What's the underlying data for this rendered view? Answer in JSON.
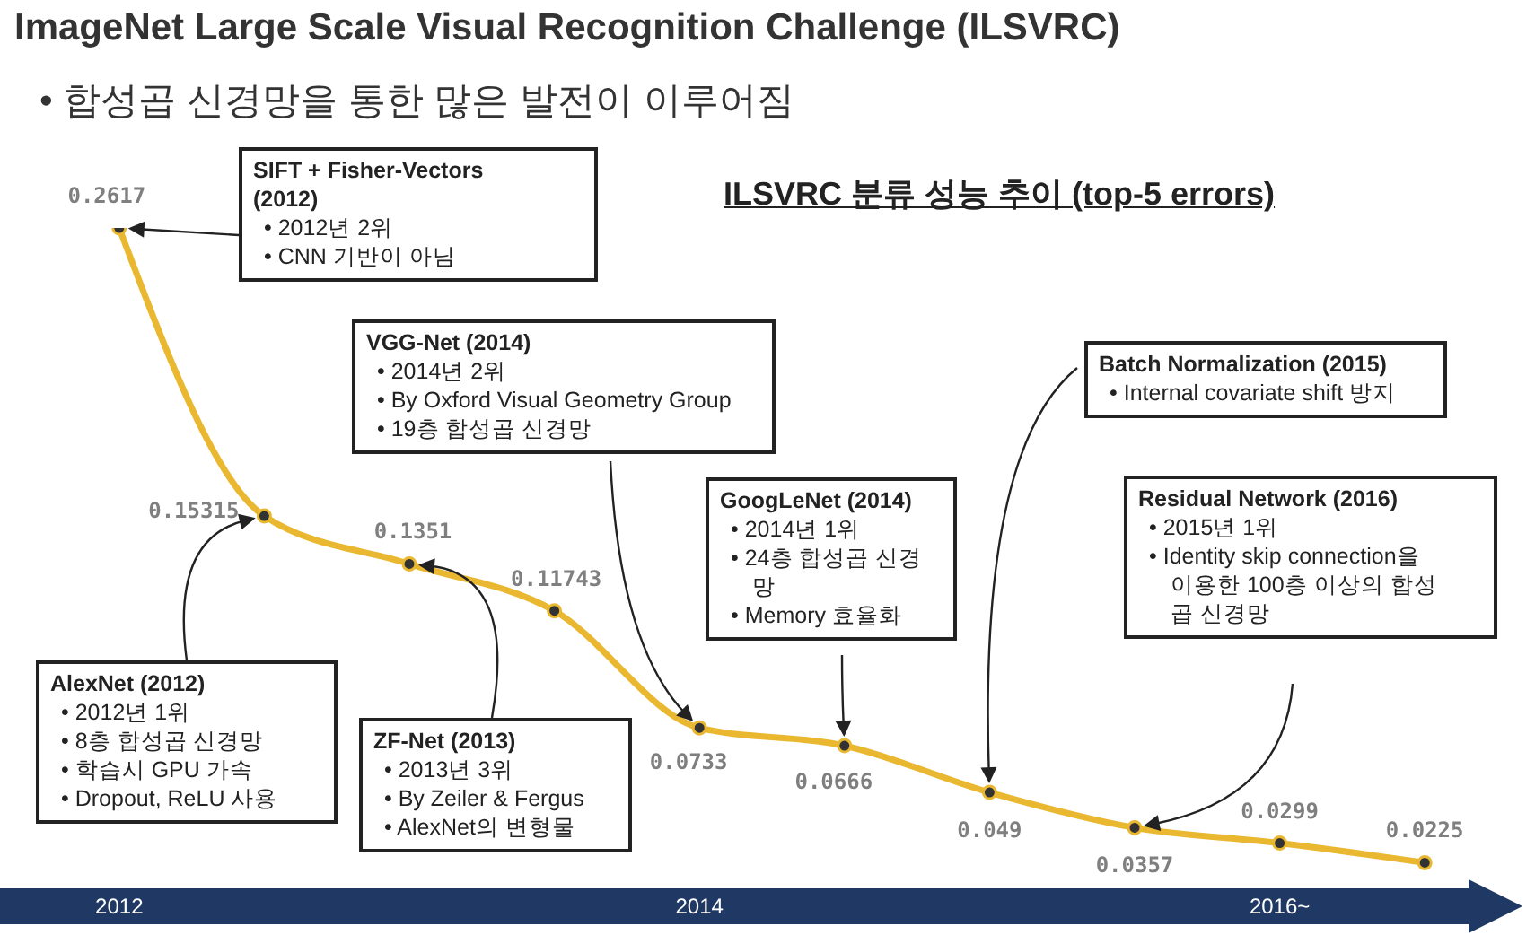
{
  "chart_data": {
    "type": "line",
    "title": "ImageNet Large Scale Visual Recognition Challenge (ILSVRC)",
    "subtitle": "• 합성곱 신경망을 통한 많은 발전이 이루어짐",
    "categories": [
      "2012",
      null,
      null,
      null,
      "2014",
      null,
      null,
      null,
      "2016~",
      null
    ],
    "series": [
      {
        "color": "#eab830",
        "values": [
          0.2617,
          0.15315,
          0.1351,
          0.11743,
          0.0733,
          0.0666,
          0.049,
          0.0357,
          0.0299,
          0.0225
        ]
      }
    ],
    "data_labels": true,
    "marker": "circle",
    "line_style": "solid",
    "annotations": [
      "ILSVRC 분류 성능 추이 (top-5 errors)",
      "SIFT + Fisher-Vectors\n(2012)\n• 2012년 2위\n• CNN 기반이 아님",
      "AlexNet (2012)\n• 2012년 1위\n• 8층 합성곱 신경망\n• 학습시 GPU 가속\n• Dropout, ReLU 사용",
      "ZF-Net (2013)\n• 2013년 3위\n• By Zeiler & Fergus\n• AlexNet의 변형물",
      "VGG-Net (2014)\n• 2014년 2위\n• By Oxford Visual Geometry Group\n• 19층 합성곱 신경망",
      "GoogLeNet (2014)\n• 2014년 1위\n• 24층 합성곱 신경\n망\n• Memory 효율화",
      "Batch Normalization (2015)\n• Internal covariate shift 방지",
      "Residual Network (2016)\n• 2015년 1위\n• Identity skip connection을\n이용한 100층 이상의 합성\n곱 신경망"
    ]
  }
}
